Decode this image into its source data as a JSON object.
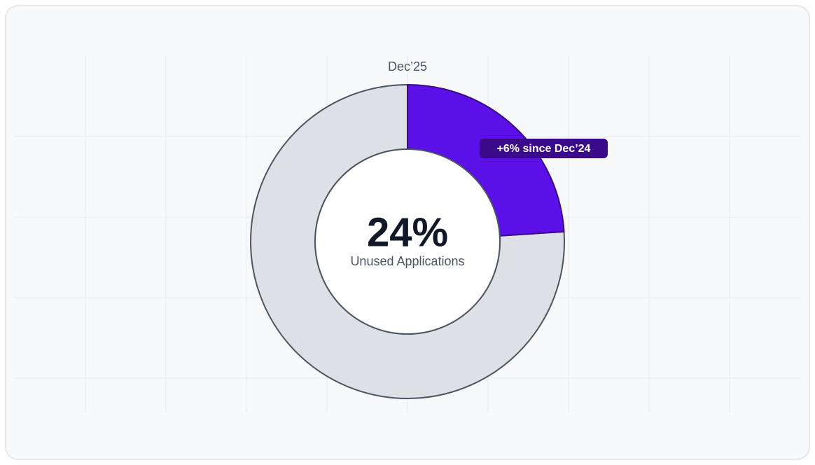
{
  "chart_data": {
    "type": "donut",
    "title": "Dec’25",
    "categories": [
      "Unused Applications",
      null
    ],
    "values": [
      24,
      76
    ],
    "value_labels": [
      "24%",
      null
    ],
    "colors": [
      "#5a10e6",
      "#dde0e4"
    ],
    "annotation": "+6% since Dec’24"
  }
}
